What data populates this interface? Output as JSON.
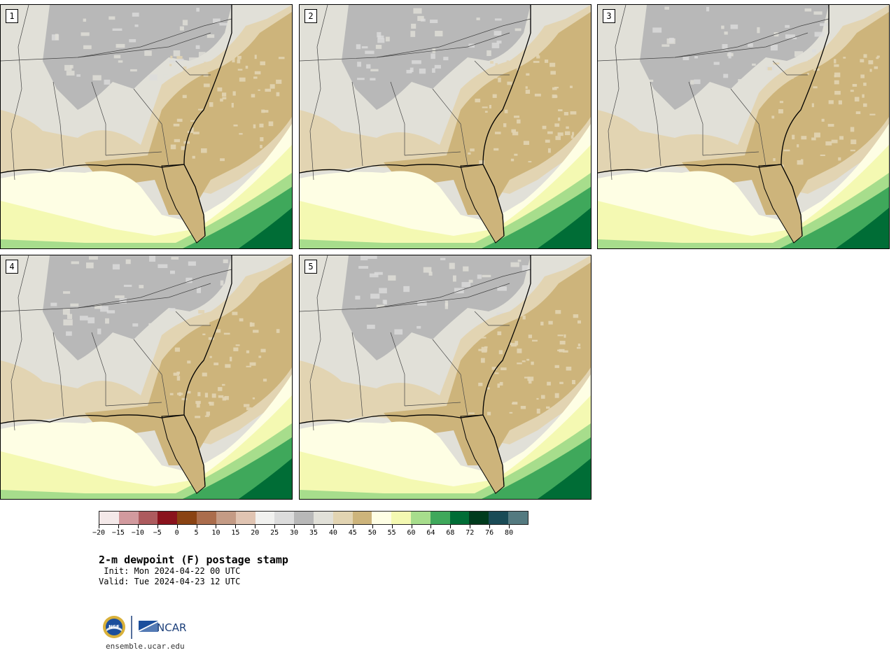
{
  "panels": [
    {
      "label": "1"
    },
    {
      "label": "2"
    },
    {
      "label": "3"
    },
    {
      "label": "4"
    },
    {
      "label": "5"
    }
  ],
  "colorbar": {
    "colors": [
      "#f4e9e9",
      "#d29a9e",
      "#ad5b5e",
      "#8a131d",
      "#8a4313",
      "#ab6d4c",
      "#c49b85",
      "#e0c4b2",
      "#f1f1ef",
      "#dcdcdc",
      "#b8b8b8",
      "#e1e0d8",
      "#e2d4b2",
      "#cdb47b",
      "#fefee4",
      "#f4f9b2",
      "#a7dd8c",
      "#3fa85b",
      "#006d36",
      "#003b1d",
      "#1a4b56",
      "#547a80"
    ],
    "tick_labels": [
      "−20",
      "−15",
      "−10",
      "−5",
      "0",
      "5",
      "10",
      "15",
      "20",
      "25",
      "30",
      "35",
      "40",
      "45",
      "50",
      "55",
      "60",
      "64",
      "68",
      "72",
      "76",
      "80"
    ]
  },
  "title": "2-m dewpoint (F) postage stamp",
  "init": " Init: Mon 2024-04-22 00 UTC",
  "valid": "Valid: Tue 2024-04-23 12 UTC",
  "logo": {
    "nsf": "NSF",
    "ncar": "NCAR",
    "url": "ensemble.ucar.edu"
  }
}
